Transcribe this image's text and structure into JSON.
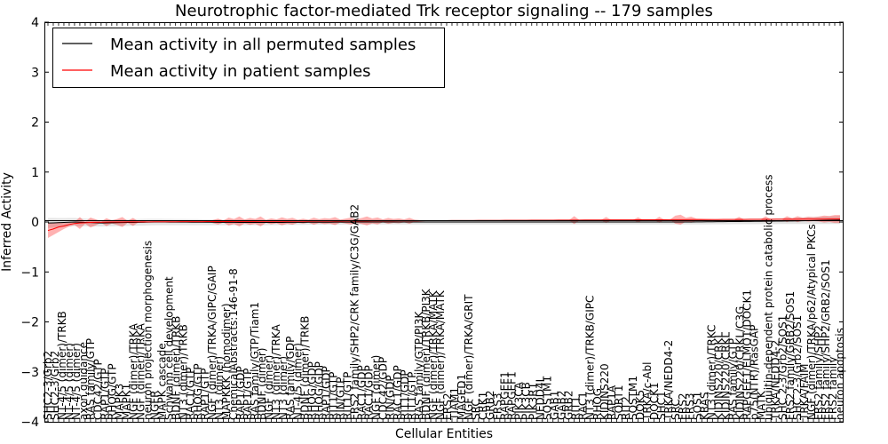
{
  "chart_data": {
    "type": "line",
    "title": "Neurotrophic factor-mediated Trk receptor signaling -- 179 samples",
    "xlabel": "Cellular Entities",
    "ylabel": "Inferred Activity",
    "ylim": [
      -4,
      4
    ],
    "yticks": [
      "4",
      "3",
      "2",
      "1",
      "0",
      "−1",
      "−2",
      "−3",
      "−4"
    ],
    "grid": false,
    "legend_position": "top-left",
    "x_count": 150,
    "series": [
      {
        "name": "Mean activity in all permuted samples",
        "color": "#000000",
        "band_color": "#b0b0b0",
        "points": [
          [
            0,
            -0.02
          ],
          [
            3,
            -0.01
          ],
          [
            5,
            0.0
          ],
          [
            10,
            -0.02
          ],
          [
            20,
            0.0
          ],
          [
            40,
            -0.01
          ],
          [
            60,
            0.0
          ],
          [
            80,
            0.0
          ],
          [
            100,
            0.0
          ],
          [
            120,
            0.0
          ],
          [
            140,
            0.02
          ],
          [
            149,
            0.04
          ]
        ],
        "band": [
          [
            0,
            0.1
          ],
          [
            5,
            0.08
          ],
          [
            10,
            0.07
          ],
          [
            30,
            0.06
          ],
          [
            50,
            0.05
          ],
          [
            70,
            0.05
          ],
          [
            100,
            0.05
          ],
          [
            120,
            0.05
          ],
          [
            140,
            0.06
          ],
          [
            149,
            0.08
          ]
        ]
      },
      {
        "name": "Mean activity in patient samples",
        "color": "#ff0000",
        "band_color": "#ff0000",
        "points": [
          [
            0,
            -0.17
          ],
          [
            1,
            -0.14
          ],
          [
            2,
            -0.1
          ],
          [
            3,
            -0.08
          ],
          [
            4,
            -0.05
          ],
          [
            5,
            -0.03
          ],
          [
            6,
            -0.02
          ],
          [
            8,
            -0.01
          ],
          [
            12,
            0.0
          ],
          [
            149,
            0.06
          ]
        ],
        "band": [
          [
            0,
            0.15
          ],
          [
            1,
            0.12
          ],
          [
            2,
            0.1
          ],
          [
            3,
            0.06
          ],
          [
            4,
            0.04
          ],
          [
            5,
            0.03
          ],
          [
            6,
            0.12
          ],
          [
            7,
            0.02
          ],
          [
            8,
            0.1
          ],
          [
            9,
            0.06
          ],
          [
            10,
            0.01
          ],
          [
            11,
            0.08
          ],
          [
            12,
            0.03
          ],
          [
            13,
            0.06
          ],
          [
            14,
            0.1
          ],
          [
            15,
            0.02
          ],
          [
            16,
            0.08
          ],
          [
            17,
            0.01
          ],
          [
            18,
            0.02
          ],
          [
            19,
            0.0
          ],
          [
            20,
            0.0
          ],
          [
            25,
            0.0
          ],
          [
            30,
            0.0
          ],
          [
            32,
            0.06
          ],
          [
            33,
            0.02
          ],
          [
            34,
            0.08
          ],
          [
            35,
            0.05
          ],
          [
            36,
            0.1
          ],
          [
            37,
            0.04
          ],
          [
            38,
            0.07
          ],
          [
            39,
            0.05
          ],
          [
            40,
            0.1
          ],
          [
            41,
            0.03
          ],
          [
            42,
            0.06
          ],
          [
            43,
            0.04
          ],
          [
            44,
            0.08
          ],
          [
            45,
            0.05
          ],
          [
            46,
            0.07
          ],
          [
            47,
            0.03
          ],
          [
            48,
            0.05
          ],
          [
            49,
            0.03
          ],
          [
            50,
            0.07
          ],
          [
            51,
            0.04
          ],
          [
            52,
            0.06
          ],
          [
            53,
            0.05
          ],
          [
            54,
            0.08
          ],
          [
            55,
            0.03
          ],
          [
            56,
            0.05
          ],
          [
            57,
            0.07
          ],
          [
            58,
            0.04
          ],
          [
            59,
            0.06
          ],
          [
            60,
            0.09
          ],
          [
            61,
            0.05
          ],
          [
            62,
            0.07
          ],
          [
            63,
            0.03
          ],
          [
            64,
            0.06
          ],
          [
            65,
            0.04
          ],
          [
            66,
            0.05
          ],
          [
            67,
            0.03
          ],
          [
            68,
            0.06
          ],
          [
            69,
            0.02
          ],
          [
            70,
            0.01
          ],
          [
            80,
            0.0
          ],
          [
            98,
            0.0
          ],
          [
            99,
            0.08
          ],
          [
            100,
            0.0
          ],
          [
            104,
            0.0
          ],
          [
            105,
            0.06
          ],
          [
            106,
            0.0
          ],
          [
            110,
            0.0
          ],
          [
            111,
            0.05
          ],
          [
            112,
            0.0
          ],
          [
            114,
            0.0
          ],
          [
            115,
            0.06
          ],
          [
            116,
            0.0
          ],
          [
            117,
            0.0
          ],
          [
            118,
            0.08
          ],
          [
            119,
            0.1
          ],
          [
            120,
            0.04
          ],
          [
            121,
            0.06
          ],
          [
            122,
            0.02
          ],
          [
            126,
            0.0
          ],
          [
            129,
            0.0
          ],
          [
            130,
            0.05
          ],
          [
            131,
            0.0
          ],
          [
            134,
            0.0
          ],
          [
            135,
            0.06
          ],
          [
            136,
            0.0
          ],
          [
            138,
            0.0
          ],
          [
            139,
            0.06
          ],
          [
            140,
            0.02
          ],
          [
            141,
            0.06
          ],
          [
            142,
            0.03
          ],
          [
            143,
            0.05
          ],
          [
            144,
            0.04
          ],
          [
            145,
            0.05
          ],
          [
            146,
            0.07
          ],
          [
            147,
            0.06
          ],
          [
            148,
            0.08
          ],
          [
            149,
            0.08
          ]
        ]
      }
    ],
    "tick_labels": [
      {
        "i": 0,
        "text": "SHC2-3/Grb2"
      },
      {
        "i": 1,
        "text": "SHC2-3/Grb2"
      },
      {
        "i": 2,
        "text": "NT-4/5 (dimer)/TRKB"
      },
      {
        "i": 3,
        "text": "NT-4/5 (dimer)"
      },
      {
        "i": 4,
        "text": "NT-4/5 (dimer)"
      },
      {
        "i": 5,
        "text": "axon guidance"
      },
      {
        "i": 6,
        "text": "RAS family/GTP"
      },
      {
        "i": 7,
        "text": "CDC42/GTP"
      },
      {
        "i": 8,
        "text": "RAP1/GTP"
      },
      {
        "i": 9,
        "text": "RHOG/GTP"
      },
      {
        "i": 10,
        "text": "MAPK3"
      },
      {
        "i": 11,
        "text": "MAPK1"
      },
      {
        "i": 12,
        "text": "NGF (dimer)/TRKA"
      },
      {
        "i": 13,
        "text": "NGF (dimer)/TRKA"
      },
      {
        "i": 14,
        "text": "neuron projection morphogenesis"
      },
      {
        "i": 15,
        "text": "NGFR"
      },
      {
        "i": 16,
        "text": "MAPK cascade"
      },
      {
        "i": 17,
        "text": "Schwann cell development"
      },
      {
        "i": 18,
        "text": "BDNF (dimer)/TRKB"
      },
      {
        "i": 19,
        "text": "NT3 (dimer)/TRKB"
      },
      {
        "i": 20,
        "text": "RAC1/GTP"
      },
      {
        "i": 21,
        "text": "RHOG/GTP"
      },
      {
        "i": 22,
        "text": "RAP1/GTP"
      },
      {
        "i": 23,
        "text": "NGF (dimer)/TRKA/GIPC/GAIP"
      },
      {
        "i": 24,
        "text": "NT3 (dimer)"
      },
      {
        "i": 25,
        "text": "MAPKKK (homodimer)"
      },
      {
        "i": 26,
        "text": "ChemicalAbstracts:146-91-8"
      },
      {
        "i": 27,
        "text": "RAP1/GDP"
      },
      {
        "i": 28,
        "text": "RAP1/GTP"
      },
      {
        "i": 29,
        "text": "RAS family/GTP/Tiam1"
      },
      {
        "i": 30,
        "text": "BDNF (dimer)"
      },
      {
        "i": 31,
        "text": "NGF (dimer)"
      },
      {
        "i": 32,
        "text": "NT3 (dimer)/TRKA"
      },
      {
        "i": 33,
        "text": "NT3 (dimer)"
      },
      {
        "i": 34,
        "text": "RAS family/GDP"
      },
      {
        "i": 35,
        "text": "NT-4/5 (dimer)"
      },
      {
        "i": 36,
        "text": "BDNF (dimer)/TRKB"
      },
      {
        "i": 37,
        "text": "RHOG/GDP"
      },
      {
        "i": 38,
        "text": "RHOG/GDP"
      },
      {
        "i": 39,
        "text": "RAP1/GDP"
      },
      {
        "i": 40,
        "text": "RIT1/GTP"
      },
      {
        "i": 41,
        "text": "RIN/GTP"
      },
      {
        "i": 42,
        "text": "RIT1/GTP"
      },
      {
        "i": 43,
        "text": "FRS2 family/SHP2/CRK family/C3G/GAB2"
      },
      {
        "i": 44,
        "text": "RAC1/GDP"
      },
      {
        "i": 45,
        "text": "RAC1/GDP"
      },
      {
        "i": 46,
        "text": "NGF (dimer)"
      },
      {
        "i": 47,
        "text": "CDC42/GDP"
      },
      {
        "i": 48,
        "text": "RIN/GDP"
      },
      {
        "i": 49,
        "text": "RAC1/GDP"
      },
      {
        "i": 50,
        "text": "RIT1/GDP"
      },
      {
        "i": 51,
        "text": "RIT1/GTP"
      },
      {
        "i": 52,
        "text": "RAS family/GTP/PI3K"
      },
      {
        "i": 53,
        "text": "BDNF (dimer)/TRKB/PI3K"
      },
      {
        "i": 54,
        "text": "NGF (dimer)/TRKA/MATK"
      },
      {
        "i": 55,
        "text": "NGF (dimer)/TRKA/MATK"
      },
      {
        "i": 56,
        "text": "FRS2"
      },
      {
        "i": 57,
        "text": "TIAM1"
      },
      {
        "i": 58,
        "text": "MAGED1"
      },
      {
        "i": 59,
        "text": "NGF (dimer)/TRKA/GRIT"
      },
      {
        "i": 60,
        "text": "SRC"
      },
      {
        "i": 61,
        "text": "CRK1"
      },
      {
        "i": 62,
        "text": "GRB2"
      },
      {
        "i": 63,
        "text": "FRS3"
      },
      {
        "i": 64,
        "text": "RAPGEF1"
      },
      {
        "i": 65,
        "text": "RAPGEF1"
      },
      {
        "i": 66,
        "text": "PIK3CA"
      },
      {
        "i": 67,
        "text": "PIK3CB"
      },
      {
        "i": 68,
        "text": "PIK3R1"
      },
      {
        "i": 69,
        "text": "NEDD4L"
      },
      {
        "i": 70,
        "text": "SQSTM1"
      },
      {
        "i": 71,
        "text": "GAB1"
      },
      {
        "i": 72,
        "text": "GAB2"
      },
      {
        "i": 73,
        "text": "GRB2"
      },
      {
        "i": 74,
        "text": "RIT1"
      },
      {
        "i": 75,
        "text": "RAC1"
      },
      {
        "i": 76,
        "text": "NT3 (dimer)/TRKB/GIPC"
      },
      {
        "i": 77,
        "text": "RHOG"
      },
      {
        "i": 78,
        "text": "KIDINS220"
      },
      {
        "i": 79,
        "text": "RAP1A"
      },
      {
        "i": 80,
        "text": "SORT1"
      },
      {
        "i": 81,
        "text": "RIT2"
      },
      {
        "i": 82,
        "text": "SQSTM1"
      },
      {
        "i": 83,
        "text": "DOK5"
      },
      {
        "i": 84,
        "text": "TRKA/c-Abl"
      },
      {
        "i": 85,
        "text": "DOCK1"
      },
      {
        "i": 86,
        "text": "SHC1"
      },
      {
        "i": 87,
        "text": "TRKA/NEDD4-2"
      },
      {
        "i": 88,
        "text": "SRC"
      },
      {
        "i": 89,
        "text": "FRS2"
      },
      {
        "i": 90,
        "text": "FRS3"
      },
      {
        "i": 91,
        "text": "SOS1"
      },
      {
        "i": 92,
        "text": "KRAS"
      },
      {
        "i": 93,
        "text": "NT3 (dimer)/TRKC"
      },
      {
        "i": 94,
        "text": "KIDINS220/CRKL"
      },
      {
        "i": 95,
        "text": "KIDINS220/CRKL"
      },
      {
        "i": 96,
        "text": "RAS family/GTP"
      },
      {
        "i": 97,
        "text": "KIDINS220/CRKL/C3G"
      },
      {
        "i": 98,
        "text": "RAPGEF1/ELMO1/DOCK1"
      },
      {
        "i": 99,
        "text": "p75(NTR)/RasGAP"
      },
      {
        "i": 100,
        "text": "MATK"
      },
      {
        "i": 101,
        "text": "ubiquitin-dependent protein catabolic process"
      },
      {
        "i": 102,
        "text": "TRKA/NEDD4-2"
      },
      {
        "i": 103,
        "text": "SHC 2-3/Grb2/SOS1"
      },
      {
        "i": 104,
        "text": "FRS2 family/GRB2/SOS1"
      },
      {
        "i": 105,
        "text": "SHC 2-3/Grb2/SOS1"
      },
      {
        "i": 106,
        "text": "TRKA/FAIM"
      },
      {
        "i": 107,
        "text": "NGF (dimer)/TRKA/p62/Atypical PKCs"
      },
      {
        "i": 108,
        "text": "FRS2 family/SHP2"
      },
      {
        "i": 109,
        "text": "FRS2 family/SHP2/GRB2/SOS1"
      },
      {
        "i": 110,
        "text": "FRS2 family"
      },
      {
        "i": 111,
        "text": "neuron apoptosis"
      }
    ]
  }
}
